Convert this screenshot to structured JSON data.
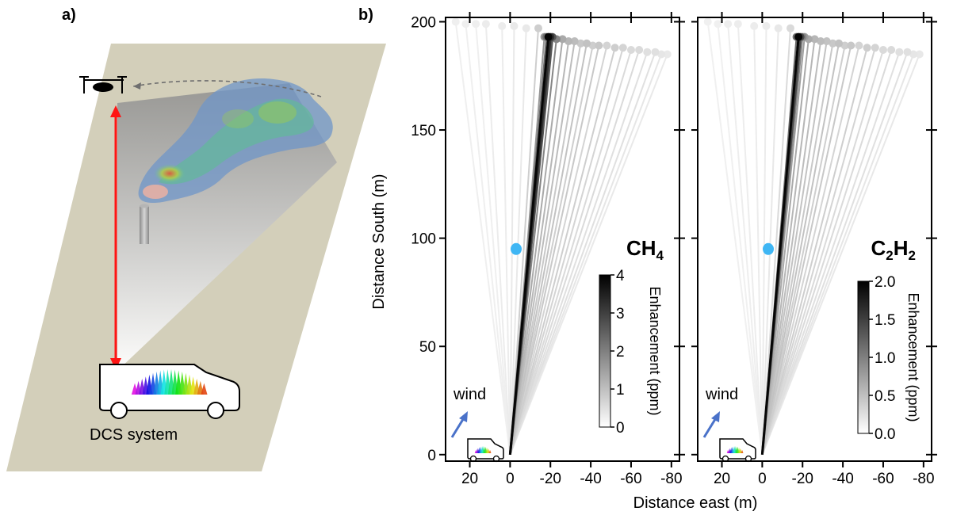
{
  "panel_a": {
    "label": "a)",
    "system_label": "DCS system"
  },
  "panel_b": {
    "label": "b)"
  },
  "colors": {
    "reference_point": "#3fb6f4",
    "wind_arrow": "#4a72c9",
    "laser_path": "#ff1414",
    "ground_plane": "#d3cfba",
    "van_outline": "#000000"
  },
  "chart_data": [
    {
      "type": "line",
      "name_label": "CH4",
      "x_axis": {
        "label": "Distance east (m)",
        "ticks": [
          20,
          0,
          -20,
          -40,
          -60,
          -80
        ],
        "range": [
          32,
          -84
        ],
        "reversed": true
      },
      "y_axis": {
        "label": "Distance South (m)",
        "ticks": [
          0,
          50,
          100,
          150,
          200
        ],
        "range": [
          -3,
          202
        ]
      },
      "origin": [
        0,
        0
      ],
      "colorbar": {
        "label": "Enhancement (ppm)",
        "ticks": [
          "4",
          "3",
          "2",
          "1",
          "0"
        ],
        "range": [
          0,
          4
        ],
        "colormap": "gray_r"
      },
      "reference_point": {
        "x": -3,
        "y": 95
      },
      "wind_label": "wind",
      "retroreflector_beams": [
        {
          "end_x": 27,
          "end_y": 200,
          "value": 0.05
        },
        {
          "end_x": 22,
          "end_y": 199,
          "value": 0.05
        },
        {
          "end_x": 17,
          "end_y": 199,
          "value": 0.05
        },
        {
          "end_x": 12,
          "end_y": 199,
          "value": 0.1
        },
        {
          "end_x": 4,
          "end_y": 198,
          "value": 0.1
        },
        {
          "end_x": -2,
          "end_y": 198,
          "value": 0.15
        },
        {
          "end_x": -8,
          "end_y": 197,
          "value": 0.15
        },
        {
          "end_x": -14,
          "end_y": 197,
          "value": 0.6
        },
        {
          "end_x": -17,
          "end_y": 193,
          "value": 1.5
        },
        {
          "end_x": -18,
          "end_y": 193,
          "value": 2.2
        },
        {
          "end_x": -19,
          "end_y": 193,
          "value": 3.9
        },
        {
          "end_x": -20,
          "end_y": 193,
          "value": 3.2
        },
        {
          "end_x": -21,
          "end_y": 193,
          "value": 2.6
        },
        {
          "end_x": -23,
          "end_y": 192,
          "value": 1.8
        },
        {
          "end_x": -26,
          "end_y": 192,
          "value": 1.2
        },
        {
          "end_x": -29,
          "end_y": 191,
          "value": 1.0
        },
        {
          "end_x": -32,
          "end_y": 191,
          "value": 0.9
        },
        {
          "end_x": -35,
          "end_y": 190,
          "value": 0.7
        },
        {
          "end_x": -38,
          "end_y": 190,
          "value": 0.8
        },
        {
          "end_x": -41,
          "end_y": 189,
          "value": 0.6
        },
        {
          "end_x": -44,
          "end_y": 189,
          "value": 0.7
        },
        {
          "end_x": -48,
          "end_y": 189,
          "value": 0.5
        },
        {
          "end_x": -52,
          "end_y": 188,
          "value": 0.6
        },
        {
          "end_x": -56,
          "end_y": 188,
          "value": 0.5
        },
        {
          "end_x": -60,
          "end_y": 187,
          "value": 0.4
        },
        {
          "end_x": -64,
          "end_y": 187,
          "value": 0.4
        },
        {
          "end_x": -68,
          "end_y": 186,
          "value": 0.3
        },
        {
          "end_x": -72,
          "end_y": 186,
          "value": 0.3
        },
        {
          "end_x": -75,
          "end_y": 185,
          "value": 0.2
        },
        {
          "end_x": -78,
          "end_y": 185,
          "value": 0.15
        }
      ]
    },
    {
      "type": "line",
      "name_label": "C2H2",
      "x_axis": {
        "label": "Distance east (m)",
        "ticks": [
          20,
          0,
          -20,
          -40,
          -60,
          -80
        ],
        "range": [
          32,
          -84
        ],
        "reversed": true
      },
      "y_axis": {
        "label": "Distance South (m)",
        "ticks": [
          0,
          50,
          100,
          150,
          200
        ],
        "range": [
          -3,
          202
        ]
      },
      "origin": [
        0,
        0
      ],
      "colorbar": {
        "label": "Enhancement (ppm)",
        "ticks": [
          "2.0",
          "1.5",
          "1.0",
          "0.5",
          "0.0"
        ],
        "range": [
          0,
          2
        ],
        "colormap": "gray_r"
      },
      "reference_point": {
        "x": -3,
        "y": 95
      },
      "wind_label": "wind",
      "retroreflector_beams": [
        {
          "end_x": 27,
          "end_y": 200,
          "value": 0.02
        },
        {
          "end_x": 22,
          "end_y": 199,
          "value": 0.02
        },
        {
          "end_x": 17,
          "end_y": 199,
          "value": 0.03
        },
        {
          "end_x": 12,
          "end_y": 199,
          "value": 0.04
        },
        {
          "end_x": 4,
          "end_y": 198,
          "value": 0.05
        },
        {
          "end_x": -2,
          "end_y": 198,
          "value": 0.05
        },
        {
          "end_x": -8,
          "end_y": 197,
          "value": 0.08
        },
        {
          "end_x": -14,
          "end_y": 197,
          "value": 0.2
        },
        {
          "end_x": -17,
          "end_y": 193,
          "value": 1.1
        },
        {
          "end_x": -18,
          "end_y": 193,
          "value": 1.95
        },
        {
          "end_x": -19,
          "end_y": 193,
          "value": 1.4
        },
        {
          "end_x": -20,
          "end_y": 193,
          "value": 0.9
        },
        {
          "end_x": -21,
          "end_y": 193,
          "value": 0.7
        },
        {
          "end_x": -23,
          "end_y": 192,
          "value": 0.6
        },
        {
          "end_x": -26,
          "end_y": 192,
          "value": 0.5
        },
        {
          "end_x": -29,
          "end_y": 191,
          "value": 0.45
        },
        {
          "end_x": -32,
          "end_y": 191,
          "value": 0.4
        },
        {
          "end_x": -35,
          "end_y": 190,
          "value": 0.35
        },
        {
          "end_x": -38,
          "end_y": 190,
          "value": 0.4
        },
        {
          "end_x": -41,
          "end_y": 189,
          "value": 0.3
        },
        {
          "end_x": -44,
          "end_y": 189,
          "value": 0.35
        },
        {
          "end_x": -48,
          "end_y": 189,
          "value": 0.25
        },
        {
          "end_x": -52,
          "end_y": 188,
          "value": 0.3
        },
        {
          "end_x": -56,
          "end_y": 188,
          "value": 0.25
        },
        {
          "end_x": -60,
          "end_y": 187,
          "value": 0.2
        },
        {
          "end_x": -64,
          "end_y": 187,
          "value": 0.2
        },
        {
          "end_x": -68,
          "end_y": 186,
          "value": 0.15
        },
        {
          "end_x": -72,
          "end_y": 186,
          "value": 0.15
        },
        {
          "end_x": -75,
          "end_y": 185,
          "value": 0.1
        },
        {
          "end_x": -78,
          "end_y": 185,
          "value": 0.08
        }
      ]
    }
  ]
}
